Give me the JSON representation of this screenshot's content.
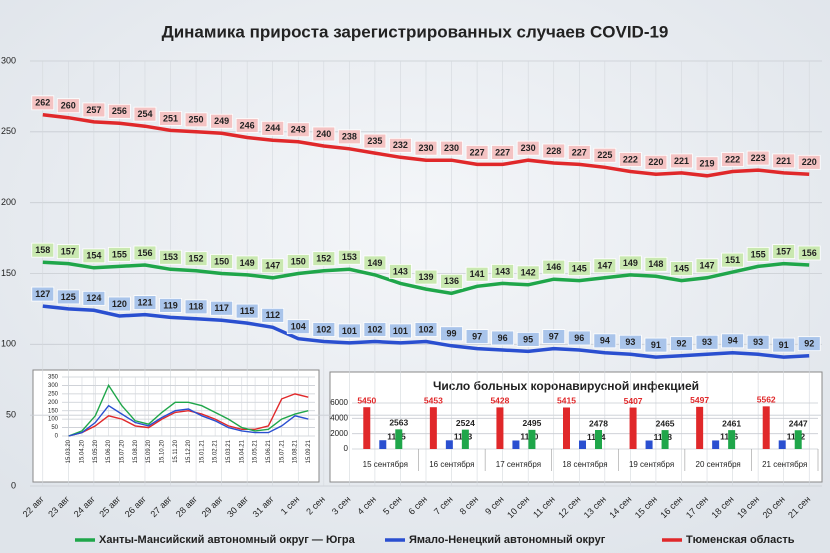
{
  "chart_data": [
    {
      "type": "line",
      "title": "Динамика прироста зарегистрированных случаев COVID-19",
      "categories": [
        "22 авг",
        "23 авг",
        "24 авг",
        "25 авг",
        "26 авг",
        "27 авг",
        "28 авг",
        "29 авг",
        "30 авг",
        "31 авг",
        "1 сен",
        "2 сен",
        "3 сен",
        "4 сен",
        "5 сен",
        "6 сен",
        "7 сен",
        "8 сен",
        "9 сен",
        "10 сен",
        "11 сен",
        "12 сен",
        "13 сен",
        "14 сен",
        "15 сен",
        "16 сен",
        "17 сен",
        "18 сен",
        "19 сен",
        "20 сен",
        "21 сен"
      ],
      "series": [
        {
          "name": "Ханты-Мансийский автономный округ — Югра",
          "color": "#1fa64a",
          "label_fill": "#c9e8b0",
          "values": [
            158,
            157,
            154,
            155,
            156,
            153,
            152,
            150,
            149,
            147,
            150,
            152,
            153,
            149,
            143,
            139,
            136,
            141,
            143,
            142,
            146,
            145,
            147,
            149,
            148,
            145,
            147,
            151,
            155,
            157,
            156
          ]
        },
        {
          "name": "Ямало-Ненецкий автономный округ",
          "color": "#2a4fd0",
          "label_fill": "#a9c4ea",
          "values": [
            127,
            125,
            124,
            120,
            121,
            119,
            118,
            117,
            115,
            112,
            104,
            102,
            101,
            102,
            101,
            102,
            99,
            97,
            96,
            95,
            97,
            96,
            94,
            93,
            91,
            92,
            93,
            94,
            93,
            91,
            92
          ]
        },
        {
          "name": "Тюменская область",
          "color": "#e0282a",
          "label_fill": "#f4c3c3",
          "values": [
            262,
            260,
            257,
            256,
            254,
            251,
            250,
            249,
            246,
            244,
            243,
            240,
            238,
            235,
            232,
            230,
            230,
            227,
            227,
            230,
            228,
            227,
            225,
            222,
            220,
            221,
            219,
            222,
            223,
            221,
            220
          ]
        }
      ],
      "ylim": [
        0,
        300
      ],
      "yticks": [
        0,
        50,
        100,
        150,
        200,
        250,
        300
      ],
      "grid": true,
      "legend": "bottom"
    },
    {
      "type": "line",
      "categories": [
        "15.03.20",
        "15.04.20",
        "15.05.20",
        "15.06.20",
        "15.07.20",
        "15.08.20",
        "15.09.20",
        "15.10.20",
        "15.11.20",
        "15.12.20",
        "15.01.21",
        "15.02.21",
        "15.03.21",
        "15.04.21",
        "15.05.21",
        "15.06.21",
        "15.07.21",
        "15.08.21",
        "15.09.21"
      ],
      "series": [
        {
          "color": "#e0282a",
          "values": [
            0,
            20,
            60,
            120,
            100,
            60,
            50,
            100,
            140,
            150,
            130,
            100,
            60,
            40,
            40,
            60,
            220,
            250,
            230
          ]
        },
        {
          "color": "#1fa64a",
          "values": [
            0,
            30,
            120,
            300,
            180,
            90,
            70,
            140,
            200,
            200,
            180,
            140,
            100,
            50,
            30,
            40,
            100,
            130,
            150
          ]
        },
        {
          "color": "#2a4fd0",
          "values": [
            0,
            20,
            80,
            180,
            130,
            80,
            60,
            110,
            150,
            160,
            120,
            90,
            50,
            30,
            20,
            20,
            60,
            120,
            100
          ]
        }
      ],
      "ylim": [
        0,
        350
      ],
      "yticks": [
        0,
        50,
        100,
        150,
        200,
        250,
        300,
        350
      ],
      "grid": true
    },
    {
      "type": "bar",
      "title": "Число больных коронавирусной инфекцией",
      "categories": [
        "15 сентября",
        "16 сентября",
        "17 сентября",
        "18 сентября",
        "19 сентября",
        "20 сентября",
        "21 сентября"
      ],
      "series": [
        {
          "color": "#e0282a",
          "values": [
            5450,
            5453,
            5428,
            5415,
            5407,
            5497,
            5562
          ]
        },
        {
          "color": "#2a4fd0",
          "values": [
            1145,
            1133,
            1110,
            1104,
            1108,
            1116,
            1122
          ]
        },
        {
          "color": "#1fa64a",
          "values": [
            2563,
            2524,
            2495,
            2478,
            2465,
            2461,
            2447
          ]
        }
      ],
      "ylim": [
        0,
        6000
      ],
      "yticks": [
        0,
        2000,
        4000,
        6000
      ],
      "grid": true
    }
  ]
}
